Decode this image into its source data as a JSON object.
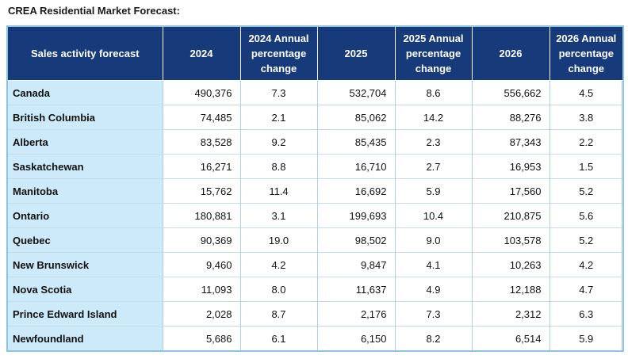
{
  "title": "CREA Residential Market Forecast:",
  "columns": [
    "Sales activity forecast",
    "2024",
    "2024 Annual percentage change",
    "2025",
    "2025 Annual percentage change",
    "2026",
    "2026 Annual percentage change"
  ],
  "rows": [
    [
      "Canada",
      "490,376",
      "7.3",
      "532,704",
      "8.6",
      "556,662",
      "4.5"
    ],
    [
      "British Columbia",
      "74,485",
      "2.1",
      "85,062",
      "14.2",
      "88,276",
      "3.8"
    ],
    [
      "Alberta",
      "83,528",
      "9.2",
      "85,435",
      "2.3",
      "87,343",
      "2.2"
    ],
    [
      "Saskatchewan",
      "16,271",
      "8.8",
      "16,710",
      "2.7",
      "16,953",
      "1.5"
    ],
    [
      "Manitoba",
      "15,762",
      "11.4",
      "16,692",
      "5.9",
      "17,560",
      "5.2"
    ],
    [
      "Ontario",
      "180,881",
      "3.1",
      "199,693",
      "10.4",
      "210,875",
      "5.6"
    ],
    [
      "Quebec",
      "90,369",
      "19.0",
      "98,502",
      "9.0",
      "103,578",
      "5.2"
    ],
    [
      "New Brunswick",
      "9,460",
      "4.2",
      "9,847",
      "4.1",
      "10,263",
      "4.2"
    ],
    [
      "Nova Scotia",
      "11,093",
      "8.0",
      "11,637",
      "4.9",
      "12,188",
      "4.7"
    ],
    [
      "Prince Edward Island",
      "2,028",
      "8.7",
      "2,176",
      "7.3",
      "2,312",
      "6.3"
    ],
    [
      "Newfoundland",
      "5,686",
      "6.1",
      "6,150",
      "8.2",
      "6,514",
      "5.9"
    ]
  ],
  "colors": {
    "header_bg": "#173a7a",
    "region_bg": "#cdeafa",
    "border": "#8fc4e0"
  }
}
